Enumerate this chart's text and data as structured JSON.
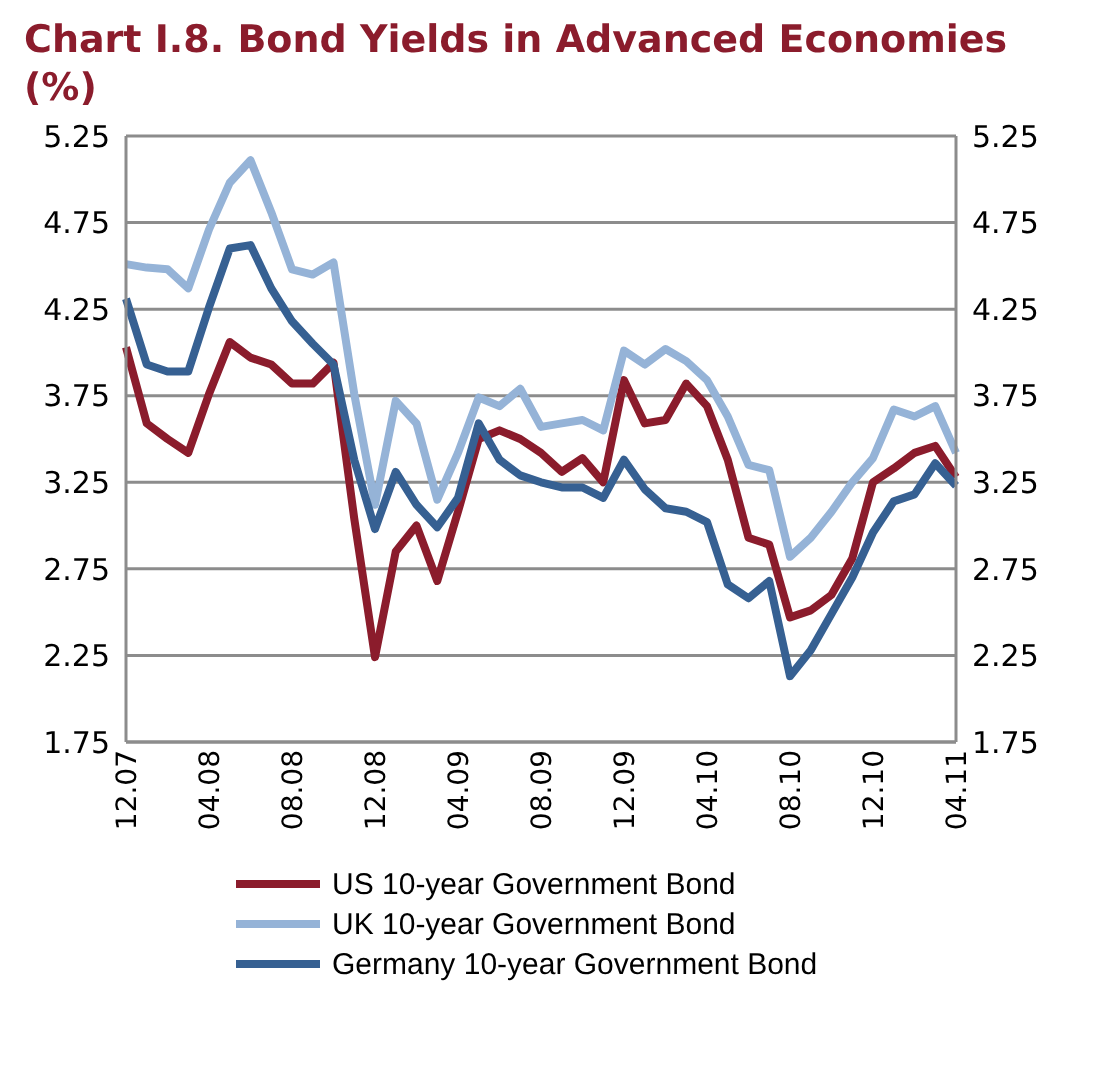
{
  "chart_data": {
    "type": "line",
    "title": "Chart I.8. Bond Yields in Advanced Economies (%)",
    "categories": [
      "12.07",
      null,
      null,
      null,
      "04.08",
      null,
      null,
      null,
      "08.08",
      null,
      null,
      null,
      "12.08",
      null,
      null,
      null,
      "04.09",
      null,
      null,
      null,
      "08.09",
      null,
      null,
      null,
      "12.09",
      null,
      null,
      null,
      "04.10",
      null,
      null,
      null,
      "08.10",
      null,
      null,
      null,
      "12.10",
      null,
      null,
      null,
      "04.11"
    ],
    "series": [
      {
        "name": "US 10-year Government Bond",
        "color": "#8b1c2c",
        "values": [
          4.03,
          3.59,
          3.5,
          3.42,
          3.76,
          4.06,
          3.97,
          3.93,
          3.82,
          3.82,
          3.94,
          3.04,
          2.24,
          2.85,
          3.0,
          2.68,
          3.08,
          3.5,
          3.55,
          3.5,
          3.42,
          3.31,
          3.39,
          3.25,
          3.84,
          3.59,
          3.61,
          3.82,
          3.69,
          3.38,
          2.93,
          2.89,
          2.47,
          2.51,
          2.6,
          2.81,
          3.25,
          3.33,
          3.42,
          3.46,
          3.28
        ]
      },
      {
        "name": "UK 10-year Government Bond",
        "color": "#95b3d7",
        "values": [
          4.51,
          4.49,
          4.48,
          4.37,
          4.71,
          4.98,
          5.11,
          4.81,
          4.48,
          4.45,
          4.52,
          3.76,
          3.12,
          3.72,
          3.59,
          3.15,
          3.42,
          3.74,
          3.69,
          3.79,
          3.57,
          3.59,
          3.61,
          3.55,
          4.01,
          3.93,
          4.02,
          3.95,
          3.84,
          3.63,
          3.35,
          3.32,
          2.82,
          2.93,
          3.08,
          3.25,
          3.39,
          3.67,
          3.63,
          3.69,
          3.42
        ]
      },
      {
        "name": "Germany 10-year Government Bond",
        "color": "#366092",
        "values": [
          4.31,
          3.93,
          3.89,
          3.89,
          4.26,
          4.6,
          4.62,
          4.37,
          4.18,
          4.05,
          3.93,
          3.38,
          2.98,
          3.31,
          3.12,
          2.99,
          3.16,
          3.59,
          3.38,
          3.29,
          3.25,
          3.22,
          3.22,
          3.16,
          3.38,
          3.21,
          3.1,
          3.08,
          3.02,
          2.66,
          2.58,
          2.68,
          2.13,
          2.28,
          2.49,
          2.7,
          2.96,
          3.14,
          3.18,
          3.36,
          3.23
        ]
      }
    ],
    "ylim": [
      1.75,
      5.25
    ],
    "yticks": [
      1.75,
      2.25,
      2.75,
      3.25,
      3.75,
      4.25,
      4.75,
      5.25
    ],
    "y2lim": [
      1.75,
      5.25
    ],
    "y2ticks": [
      1.75,
      2.25,
      2.75,
      3.25,
      3.75,
      4.25,
      4.75,
      5.25
    ],
    "grid": "y",
    "legend": "bottom"
  }
}
